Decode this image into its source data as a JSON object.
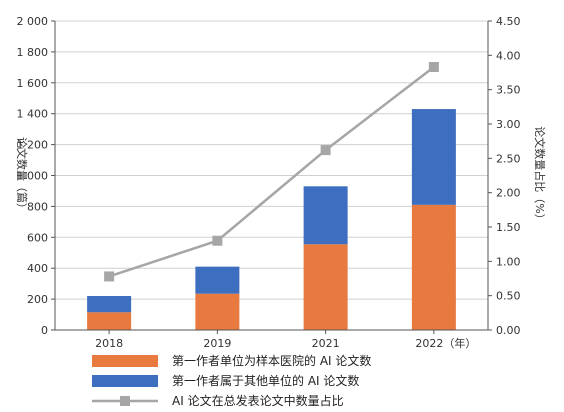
{
  "chart_data": {
    "type": "bar",
    "stacked": true,
    "categories": [
      "2018",
      "2019",
      "2021",
      "2022（年）"
    ],
    "series": [
      {
        "name": "第一作者单位为样本医院的 AI 论文数",
        "values": [
          115,
          235,
          555,
          810
        ],
        "color": "#E8793F",
        "axis": "left"
      },
      {
        "name": "第一作者属于其他单位的 AI 论文数",
        "values": [
          105,
          175,
          375,
          620
        ],
        "color": "#3E6EBF",
        "axis": "left"
      },
      {
        "name": "AI 论文在总发表论文中数量占比",
        "type": "line",
        "values": [
          0.78,
          1.3,
          2.62,
          3.83
        ],
        "color": "#A6A6A6",
        "axis": "right"
      }
    ],
    "ylabel": "论文数量（篇）",
    "y2label": "论文数量占比（%）",
    "ylim": [
      0,
      2000
    ],
    "y2lim": [
      0,
      4.5
    ],
    "yticks": [
      "0",
      "200",
      "400",
      "600",
      "800",
      "1 000",
      "1 200",
      "1 400",
      "1 600",
      "1 800",
      "2 000"
    ],
    "y2ticks": [
      "0.00",
      "0.50",
      "1.00",
      "1.50",
      "2.00",
      "2.50",
      "3.00",
      "3.50",
      "4.00",
      "4.50"
    ],
    "grid": true,
    "legend": "bottom"
  }
}
